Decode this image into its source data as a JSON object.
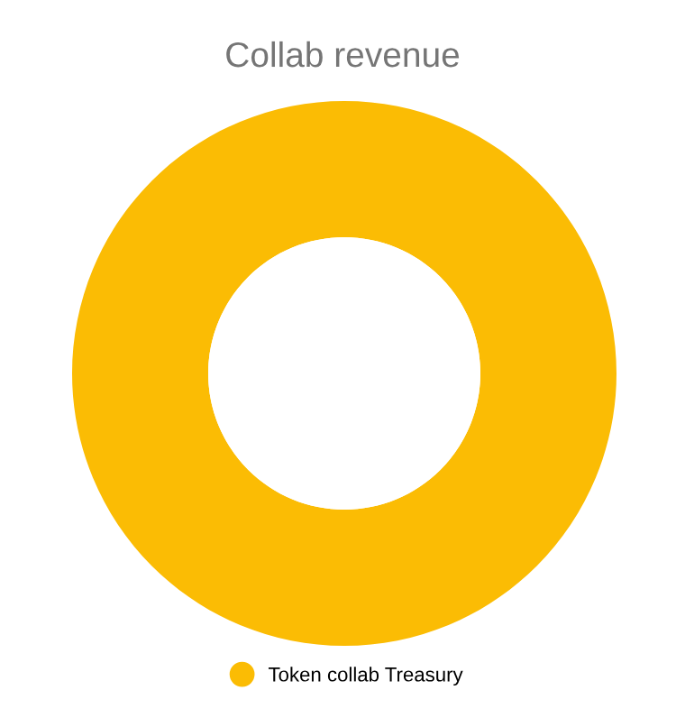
{
  "chart_data": {
    "type": "donut",
    "title": "Collab revenue",
    "categories": [
      "Token collab Treasury"
    ],
    "values": [
      100
    ],
    "colors": [
      "#fbbc04"
    ],
    "legend": "bottom"
  }
}
